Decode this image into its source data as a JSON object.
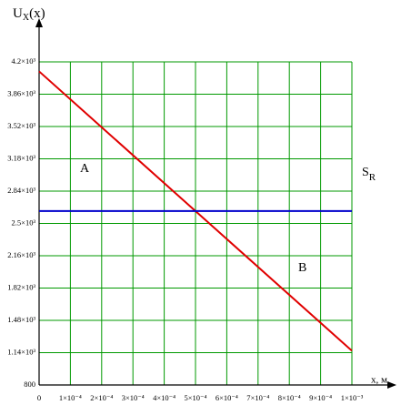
{
  "chart_data": {
    "type": "line",
    "y_label": [
      "U",
      "X",
      "(x)"
    ],
    "x_label": "x, м",
    "x": [
      0,
      0.001
    ],
    "series": [
      {
        "color": "#e00000",
        "values": [
          4100,
          1160
        ]
      },
      {
        "color": "#0000cc",
        "values": [
          2630,
          2630
        ]
      }
    ],
    "annotations": [
      "A",
      "B",
      [
        "S",
        "R"
      ]
    ],
    "xlim": [
      0,
      0.001
    ],
    "xticks": [
      0,
      {
        "value": 0.0001,
        "label": "1×10⁻⁴"
      },
      {
        "value": 0.0002,
        "label": "2×10⁻⁴"
      },
      {
        "value": 0.0003,
        "label": "3×10⁻⁴"
      },
      {
        "value": 0.0004,
        "label": "4×10⁻⁴"
      },
      {
        "value": 0.0005,
        "label": "5×10⁻⁴"
      },
      {
        "value": 0.0006,
        "label": "6×10⁻⁴"
      },
      {
        "value": 0.0007,
        "label": "7×10⁻⁴"
      },
      {
        "value": 0.0008,
        "label": "8×10⁻⁴"
      },
      {
        "value": 0.0009,
        "label": "9×10⁻⁴"
      },
      {
        "value": 0.001,
        "label": "1×10⁻³"
      }
    ],
    "ylim": [
      800,
      4200
    ],
    "yticks": [
      800,
      {
        "value": 1140,
        "label": "1.14×10³"
      },
      {
        "value": 1480,
        "label": "1.48×10³"
      },
      {
        "value": 1820,
        "label": "1.82×10³"
      },
      {
        "value": 2160,
        "label": "2.16×10³"
      },
      {
        "value": 2500,
        "label": "2.5×10³"
      },
      {
        "value": 2840,
        "label": "2.84×10³"
      },
      {
        "value": 3180,
        "label": "3.18×10³"
      },
      {
        "value": 3520,
        "label": "3.52×10³"
      },
      {
        "value": 3860,
        "label": "3.86×10³"
      },
      {
        "value": 4200,
        "label": "4.2×10³"
      }
    ],
    "grid": true,
    "grid_color": "#009900"
  }
}
